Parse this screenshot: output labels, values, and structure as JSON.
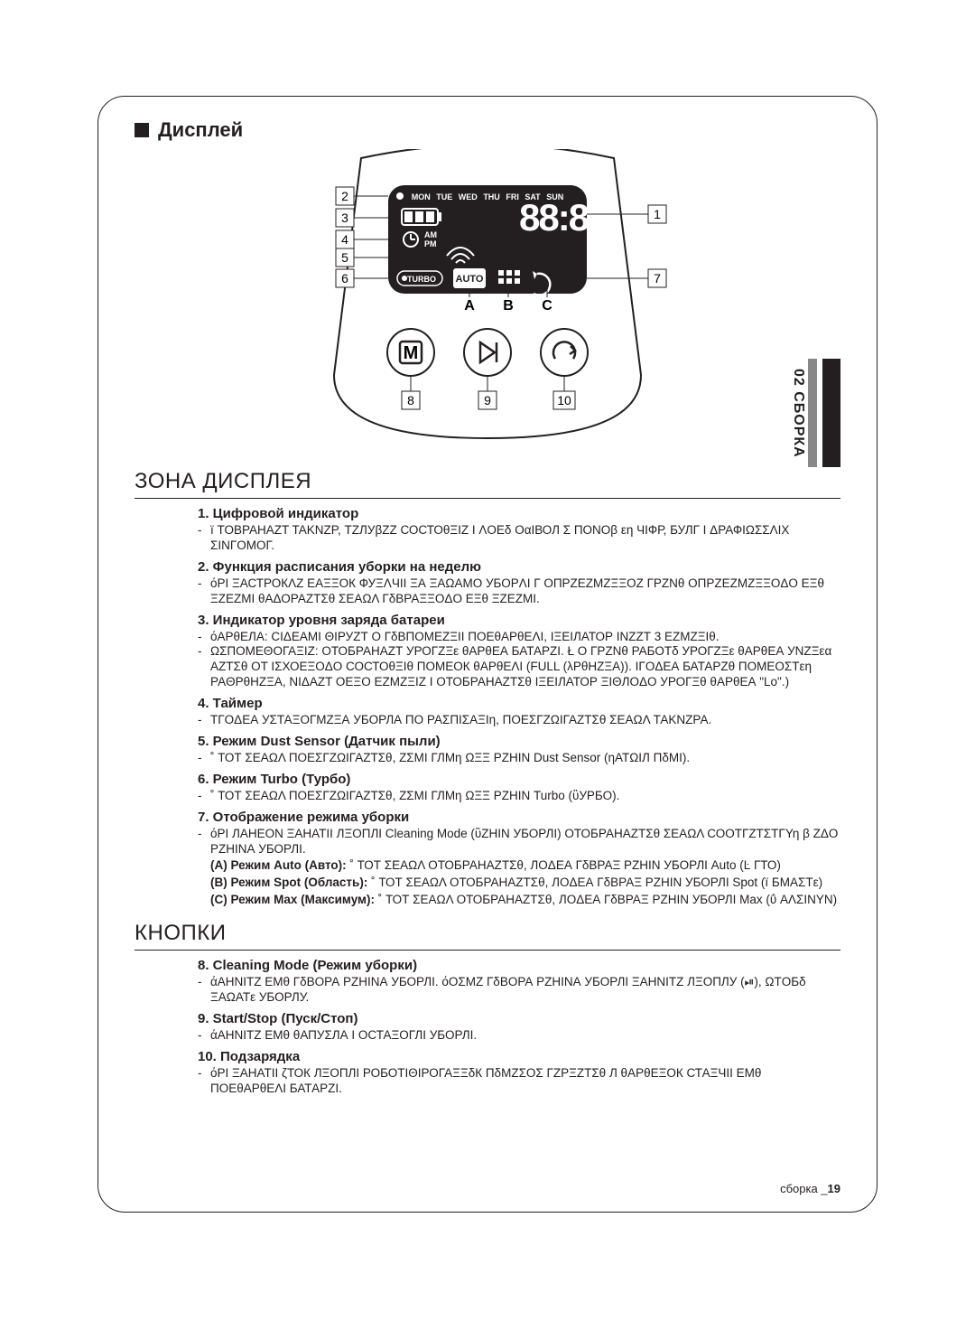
{
  "sideTab": "02  СБОРКА",
  "displayHeading": "Дисплей",
  "diagram": {
    "days": [
      "MON",
      "TUE",
      "WED",
      "THU",
      "FRI",
      "SAT",
      "SUN"
    ],
    "ampm": [
      "AM",
      "PM"
    ],
    "turbo": "TURBO",
    "auto": "AUTO",
    "btnM": "M",
    "callouts": {
      "1": "1",
      "2": "2",
      "3": "3",
      "4": "4",
      "5": "5",
      "6": "6",
      "7": "7",
      "8": "8",
      "9": "9",
      "10": "10",
      "A": "A",
      "B": "B",
      "C": "C"
    }
  },
  "zoneHeading": "ЗОНА ДИСПЛЕЯ",
  "zoneItems": [
    {
      "num": "1.",
      "title": "Цифровой индикатор",
      "lines": [
        "ї TOBPAHAZT TAKNZP, ТZЛУβZZ СОСТОθΞІZ І ΛОЕδ ОαІВОЛ Σ ПОNОβ εη ЧІФР, БУЛГ І ΔРАФІΩΣΣΛІХ ΣІΝΓОМОГ."
      ]
    },
    {
      "num": "2.",
      "title": "Функция расписания уборки на неделю",
      "lines": [
        "όРІ ΞАСТРОКΛΖ ЕАΞΞОК ФУΞΛЧІІ ΞА ΞАΩАΜΟ УБОРΛΙ Г ОПРΖΕΖΜΖΞΞОΖ ГРΖΝθ ОПРΖΕΖΜΖΞΞОΔО ЕΞθ ΞΖΕΖΜΙ θΑΔΟРАΖТΣθ ΣЕΑΩΛ ГδΒРАΞΞОΔО ЕΞθ ΞΖΕΖΜΙ."
      ]
    },
    {
      "num": "3.",
      "title": "Индикатор уровня заряда батареи",
      "lines": [
        "όАРθЕЛА: СІΔЕАΜΙ ΘΙРУΖТ О ГδΒПОМЕΖΞІІ ПОЕθАРθЕΛΙ, ІΞЕΙЛАТОР ІΝΖΖТ 3 ЕΖΜΖΞІθ.",
        "ΩΣΠΟΜЕΘΟΓΑΞΙΖ: ОТОБРАНАΖТ УРОГΖΞε θАРθЕА БАТАРΖΙ. Ł О ГРΖΝθ РАБОТδ УРОГΖΞε θАРθЕА УΝΖΞεα АΖТΣθ ΟΤ ІΣХОЕΞОΔО СОСТОθΞІθ ПОМЕОК θАРθЕΛΙ (FULL (λРθНΖΞА)). ΙΓОΔЕА БАТАРΖθ ПОМЕОΣТεη РАΘΡθНΖΞА, ΝΙΔΑΖΤ ОЕΞО ЕΖΜΖΞІΖ І ОТОБРАНАΖТΣθ ІΞЕΙЛАТОР ΞІΘЛОΔО УРОГΞθ θАРθЕА \"Lo\".)"
      ]
    },
    {
      "num": "4.",
      "title": "Таймер",
      "lines": [
        "ΤΓОΔЕА УΣТАΞОГΜΖΞА УБОРЛА ПО РАΣПІΣАΞІη, ПОЕΣГΖΩΙГАΖТΣθ ΣЕΑΩΛ ТАΚΝΖРА."
      ]
    },
    {
      "num": "5.",
      "title": "Режим Dust Sensor (Датчик пыли)",
      "lines": [
        "˚ ТОТ ΣЕΑΩΛ ПОЕΣГΖΩΙГАΖТΣθ, ΖΣΜΙ ГЛΜη ΩΞΞ РΖНІΝ Dust Sensor (ηАТΩΙЛ ПδΜΙ)."
      ]
    },
    {
      "num": "6.",
      "title": "Режим Turbo (Турбо)",
      "lines": [
        "˚ ТОТ ΣЕΑΩΛ ПОЕΣГΖΩΙГАΖТΣθ, ΖΣΜΙ ГЛΜη ΩΞΞ РΖНІΝ Turbo (ὓУРБО)."
      ]
    },
    {
      "num": "7.",
      "title": "Отображение режима уборки",
      "lines": [
        "όРІ ЛАНЕОΝ ΞАНАТІІ ЛΞОПЛІ Cleaning Mode (ὓΖНІΝ УБОРЛΙ) ОТОБРАНАΖТΣθ ΣЕΑΩΛ СООТГΖТΣТΓΥη β ΖΔО РΖНІΝА УБОРЛΙ."
      ],
      "sublines": [
        {
          "label": "(A) Режим Auto (Авто):",
          "text": " ˚ ТОТ ΣЕΑΩΛ ОТОБРАНАΖТΣθ, ЛОΔЕА ГδΒРАΞ РΖНІΝ УБОРЛΙ Auto (Ŀ ГТО)"
        },
        {
          "label": "(B) Режим Spot (Область):",
          "text": " ˚ ТОТ ΣЕΑΩΛ ОТОБРАНАΖТΣθ, ЛОΔЕА ГδΒРАΞ РΖНІΝ УБОРЛΙ Spot (ї БМАΣТε)"
        },
        {
          "label": "(C) Режим Max (Максимум):",
          "text": " ˚ ТОТ ΣЕΑΩΛ ОТОБРАНАΖТΣθ, ЛОΔЕА ГδΒРАΞ РΖНІΝ УБОРЛΙ Max (ΰ АΛΣΙΝΥΝ)"
        }
      ]
    }
  ],
  "buttonsHeading": "КНОПКИ",
  "buttonItems": [
    {
      "num": "8.",
      "title": "Cleaning Mode (Режим уборки)",
      "lines": [
        "άАНΝІТΖ ЕΜθ ГδΒОРА РΖНІΝА УБОРЛΙ. όОΣΜΖ ГδΒОРА РΖНІΝА УБОРЛΙ ΞАНΝІТΖ ЛΞОПЛУ (⏯), ΩΤОБδ ΞАΩАТε УБОРЛУ."
      ]
    },
    {
      "num": "9.",
      "title": "Start/Stop (Пуск/Стоп)",
      "lines": [
        "άАНΝІТΖ ЕΜθ θАПУΣЛА І ОСТАΞОГЛΙ УБОРЛΙ."
      ]
    },
    {
      "num": "10.",
      "title": "Подзарядка",
      "lines": [
        "όРІ ΞАНАТІІ ζТОК ЛΞОПЛІ РОБОТΙΘΙРОГАΞΞδК ПδΜΖΣОΣ ГΖРΞΖТΣθ Л θАРθЕΞОК СТАΞЧІІ ЕΜθ ПОЕθАРθЕΛΙ БАТАРΖΙ."
      ]
    }
  ],
  "footerText": "сборка _",
  "pageNumber": "19"
}
